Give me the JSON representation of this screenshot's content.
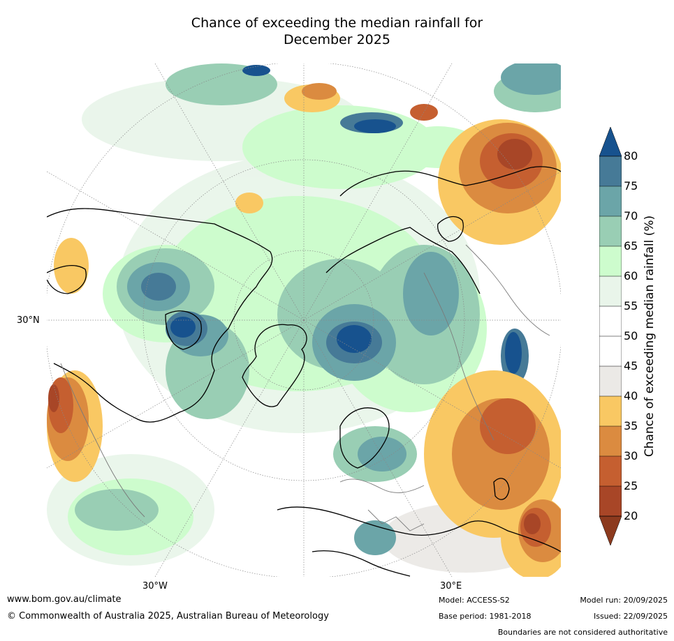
{
  "title_line1": "Chance of exceeding the median rainfall for",
  "title_line2": "December 2025",
  "map": {
    "projection": "north-polar",
    "lat_label": "30°N",
    "lon_labels": [
      "30°W",
      "30°E"
    ]
  },
  "colorbar": {
    "title": "Chance of exceeding median rainfall (%)",
    "ticks": [
      "20",
      "25",
      "30",
      "35",
      "40",
      "45",
      "50",
      "55",
      "60",
      "65",
      "70",
      "75",
      "80"
    ],
    "colors": {
      "lt20": "#8c3a1e",
      "20-25": "#a84627",
      "25-30": "#c55f30",
      "30-35": "#db8b40",
      "35-40": "#f9c863",
      "40-45": "#ebe9e6",
      "45-50": "#ffffff",
      "50-55": "#ffffff",
      "55-60": "#e9f5ea",
      "60-65": "#cdfccd",
      "65-70": "#99ceb4",
      "70-75": "#6ba5a8",
      "75-80": "#467a97",
      "gt80": "#17528e"
    }
  },
  "footer": {
    "url": "www.bom.gov.au/climate",
    "copyright": "© Commonwealth of Australia 2025, Australian Bureau of Meteorology",
    "model": "Model: ACCESS-S2",
    "base_period": "Base period: 1981-2018",
    "model_run": "Model run: 20/09/2025",
    "issued": "Issued: 22/09/2025",
    "disclaimer": "Boundaries are not considered authoritative"
  }
}
